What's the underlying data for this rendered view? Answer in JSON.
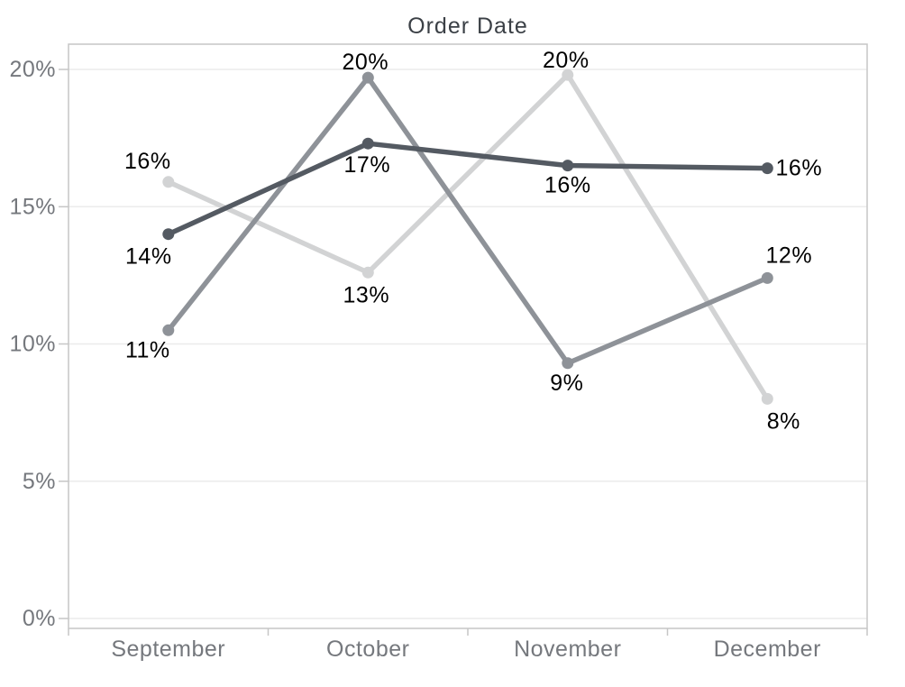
{
  "chart_data": {
    "type": "line",
    "title": "Order Date",
    "x_categories": [
      "September",
      "October",
      "November",
      "December"
    ],
    "y_tick_labels": [
      "0%",
      "5%",
      "10%",
      "15%",
      "20%"
    ],
    "y_axis": {
      "min": 0,
      "max": 21,
      "tick_step": 5,
      "unit": "%",
      "grid": true
    },
    "legend_position": "none",
    "series": [
      {
        "name": "light-gray-series",
        "color": "#d2d3d4",
        "values": [
          15.9,
          12.6,
          19.8,
          8.0
        ],
        "point_labels": [
          "16%",
          "13%",
          "20%",
          "8%"
        ],
        "label_offsets": [
          [
            -23,
            -23
          ],
          [
            -2,
            25
          ],
          [
            -2,
            -16
          ],
          [
            18,
            25
          ]
        ]
      },
      {
        "name": "medium-gray-series",
        "color": "#8e9298",
        "values": [
          10.5,
          19.7,
          9.3,
          12.4
        ],
        "point_labels": [
          "11%",
          "20%",
          "9%",
          "12%"
        ],
        "label_offsets": [
          [
            -23,
            22
          ],
          [
            -3,
            -17
          ],
          [
            -1,
            22
          ],
          [
            24,
            -25
          ]
        ]
      },
      {
        "name": "dark-gray-series",
        "color": "#545a62",
        "values": [
          14.0,
          17.3,
          16.5,
          16.4
        ],
        "point_labels": [
          "14%",
          "17%",
          "16%",
          "16%"
        ],
        "label_offsets": [
          [
            -22,
            25
          ],
          [
            -1,
            24
          ],
          [
            0,
            22
          ],
          [
            35,
            0
          ]
        ]
      }
    ]
  },
  "colors": {
    "background": "#ffffff",
    "grid_line": "#ebebeb",
    "axis_border": "#c6c6c6",
    "tick_mark": "#c6c6c6",
    "axis_text": "#75787d",
    "title_text": "#3b4046",
    "data_label_text": "#000000"
  }
}
